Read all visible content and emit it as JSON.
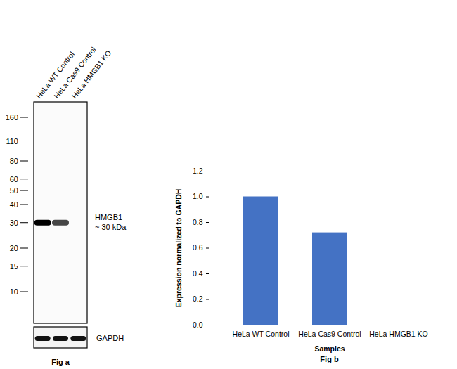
{
  "chart_data": {
    "type": "bar",
    "caption": "Fig b",
    "categories": [
      "HeLa WT Control",
      "HeLa Cas9 Control",
      "HeLa HMGB1 KO"
    ],
    "values": [
      1,
      0.72,
      0
    ],
    "color": "#4472c4",
    "xlabel": "Samples",
    "ylabel": "Expression normalized to GAPDH",
    "ylim": [
      0,
      1.2
    ],
    "yticks": [
      0,
      0.2,
      0.4,
      0.6,
      0.8,
      1,
      1.2
    ],
    "grid": false
  },
  "blot": {
    "caption": "Fig a",
    "lanes": [
      "HeLa WT Control",
      "HeLa Cas9 Control",
      "HeLa HMGB1 KO"
    ],
    "markers": [
      160,
      110,
      80,
      60,
      50,
      40,
      30,
      20,
      15,
      10
    ],
    "band_label": "HMGB1",
    "band_size": "~ 30 kDa",
    "band_kda": 30,
    "loading_control": "GAPDH"
  }
}
